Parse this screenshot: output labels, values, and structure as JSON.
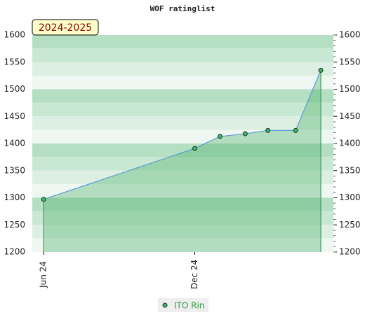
{
  "chart_data": {
    "type": "line",
    "title": "WOF ratinglist",
    "annotation": "2024-2025",
    "x": [
      0,
      6,
      7.0,
      8.0,
      8.9,
      10.0,
      11.0
    ],
    "xlim": [
      -0.45,
      11.5
    ],
    "xticks": [
      {
        "value": 0,
        "label": "Jun 24"
      },
      {
        "value": 6,
        "label": "Dec 24"
      }
    ],
    "series": [
      {
        "name": "ITO Rin",
        "color": "#5b9bd5",
        "values": [
          1297,
          1391,
          1413,
          1418,
          1424,
          1424,
          1535
        ]
      }
    ],
    "ylim": [
      1200,
      1600
    ],
    "yticks": [
      1200,
      1250,
      1300,
      1350,
      1400,
      1450,
      1500,
      1550,
      1600
    ],
    "grid": false
  }
}
